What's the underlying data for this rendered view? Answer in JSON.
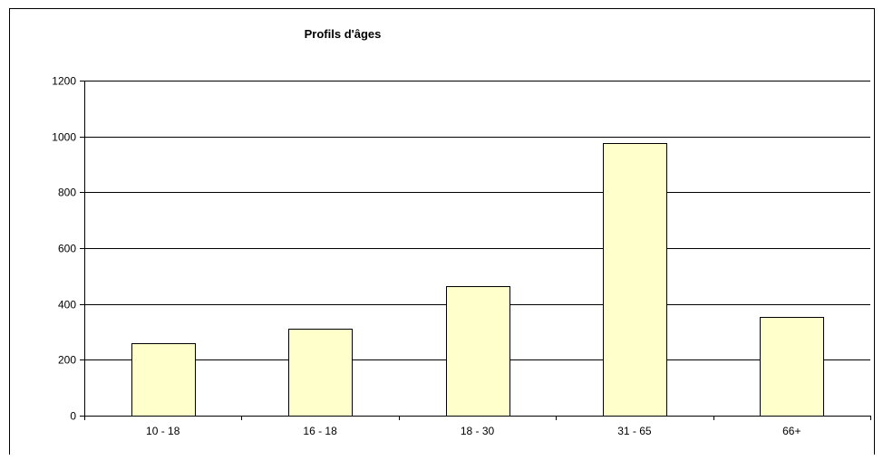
{
  "chart_data": {
    "type": "bar",
    "title": "Profils d'âges",
    "xlabel": "",
    "ylabel": "",
    "categories": [
      "10 - 18",
      "16 - 18",
      "18 - 30",
      "31 - 65",
      "66+"
    ],
    "values": [
      260,
      310,
      465,
      975,
      355
    ],
    "ylim": [
      0,
      1200
    ],
    "yticks": [
      0,
      200,
      400,
      600,
      800,
      1000,
      1200
    ],
    "grid": true,
    "legend": "none",
    "colors": {
      "bar_fill": "#ffffcc",
      "bar_stroke": "#000000",
      "gridline": "#000000",
      "background": "#ffffff"
    }
  }
}
